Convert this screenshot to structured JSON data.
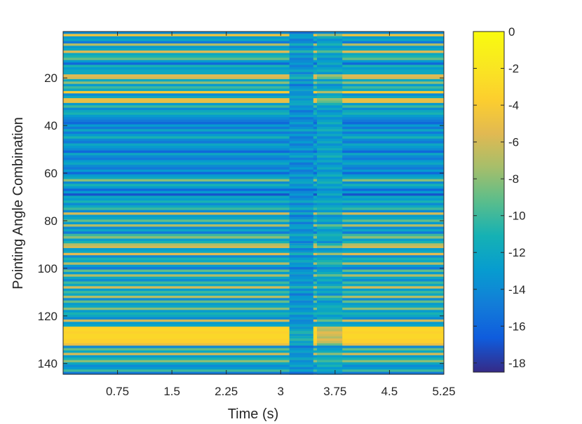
{
  "chart_data": {
    "type": "heatmap",
    "title": "",
    "xlabel": "Time (s)",
    "ylabel": "Pointing Angle Combination",
    "xlim": [
      0,
      5.25
    ],
    "ylim": [
      1,
      144
    ],
    "y_direction": "reverse",
    "x_ticks": [
      0.75,
      1.5,
      2.25,
      3,
      3.75,
      4.5,
      5.25
    ],
    "x_tick_labels": [
      "0.75",
      "1.5",
      "2.25",
      "3",
      "3.75",
      "4.5",
      "5.25"
    ],
    "y_ticks": [
      20,
      40,
      60,
      80,
      100,
      120,
      140
    ],
    "y_tick_labels": [
      "20",
      "40",
      "60",
      "80",
      "100",
      "120",
      "140"
    ],
    "colorbar": {
      "colormap": "parula",
      "clim": [
        -18.5,
        0
      ],
      "ticks": [
        0,
        -2,
        -4,
        -6,
        -8,
        -10,
        -12,
        -14,
        -16,
        -18
      ],
      "tick_labels": [
        "0",
        "-2",
        "-4",
        "-6",
        "-8",
        "-10",
        "-12",
        "-14",
        "-16",
        "-18"
      ],
      "placement": "right"
    },
    "disturbance_window_s": [
      3.12,
      3.45
    ],
    "secondary_window_s": [
      3.5,
      3.85
    ],
    "row_levels_approx": [
      -14,
      -4.5,
      -13,
      -12,
      -15,
      -7,
      -13,
      -12,
      -5.5,
      -12,
      -11,
      -9,
      -13,
      -16,
      -11,
      -13,
      -12,
      -12,
      -5.5,
      -6,
      -12,
      -8,
      -13,
      -10,
      -12,
      -4,
      -14,
      -12,
      -5,
      -5,
      -13,
      -10,
      -14,
      -12,
      -11,
      -13,
      -14,
      -15,
      -16,
      -13,
      -15,
      -12,
      -15,
      -13,
      -11,
      -14,
      -15,
      -12,
      -13,
      -14,
      -16,
      -12,
      -14,
      -15,
      -13,
      -12,
      -14,
      -15,
      -13,
      -16,
      -13,
      -12,
      -8,
      -14,
      -11,
      -13,
      -16,
      -13,
      -17,
      -12,
      -13,
      -11,
      -14,
      -12,
      -10,
      -14,
      -6,
      -13,
      -12,
      -9,
      -13,
      -7,
      -14,
      -12,
      -15,
      -10,
      -8,
      -13,
      -11,
      -7,
      -6,
      -13,
      -12,
      -5.5,
      -14,
      -11,
      -12,
      -7,
      -13,
      -15,
      -9,
      -13,
      -7,
      -12,
      -14,
      -10,
      -12,
      -6,
      -13,
      -10,
      -12,
      -7,
      -14,
      -9,
      -13,
      -12,
      -8,
      -13,
      -11,
      -12,
      -14,
      -6,
      -13,
      -12,
      -3.5,
      -3,
      -3.5,
      -3,
      -3,
      -3.5,
      -3.5,
      -5,
      -14,
      -9,
      -12,
      -6,
      -13,
      -11,
      -8,
      -12,
      -14,
      -13,
      -10,
      -15
    ]
  }
}
